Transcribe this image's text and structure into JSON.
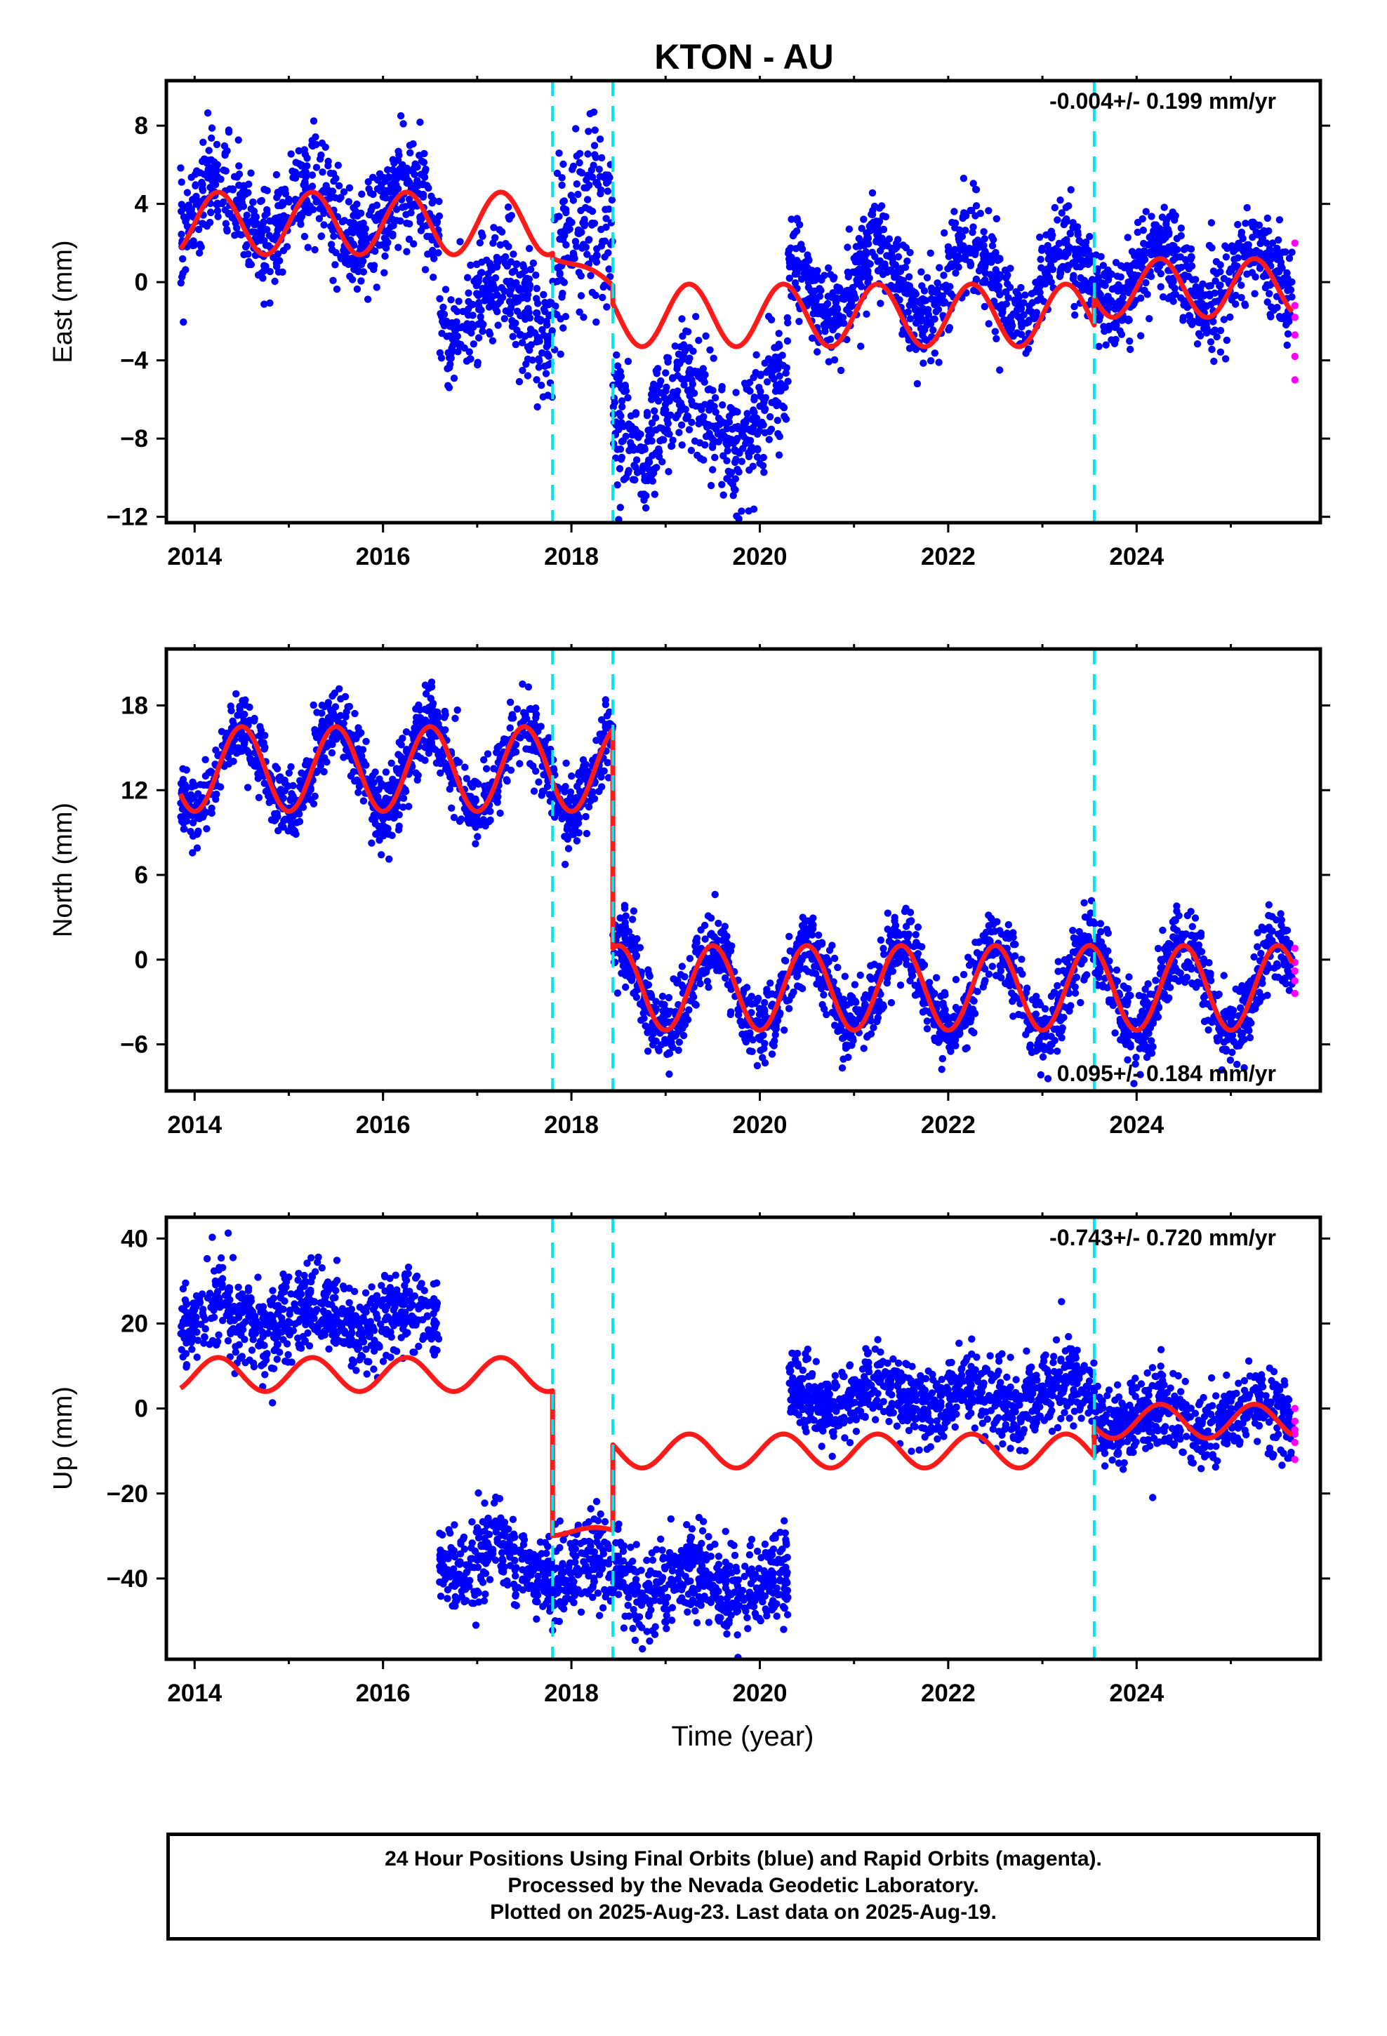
{
  "title": "KTON - AU",
  "xlabel": "Time (year)",
  "footer": {
    "line1": "24 Hour Positions Using Final Orbits (blue) and Rapid Orbits (magenta).",
    "line2": "Processed by the Nevada Geodetic Laboratory.",
    "line3": "Plotted on 2025-Aug-23. Last data on 2025-Aug-19."
  },
  "colors": {
    "final": "#0000ff",
    "rapid": "#ff00ff",
    "model": "#ff1a1a",
    "event": "#00e5ee"
  },
  "chart_data": [
    {
      "type": "scatter",
      "component": "east",
      "ylabel": "East (mm)",
      "rate": "-0.004+/- 0.199 mm/yr",
      "xlim": [
        2013.7,
        2025.95
      ],
      "ylim": [
        -12.3,
        10.3
      ],
      "xticks": [
        "2014",
        "2016",
        "2018",
        "2020",
        "2022",
        "2024"
      ],
      "yticks": [
        "8",
        "4",
        "0",
        "-4",
        "-8",
        "-12"
      ],
      "events": [
        2017.8,
        2018.44,
        2023.55
      ],
      "series": [
        {
          "segment": [
            2013.85,
            2016.6
          ],
          "offset": 3.5,
          "amp": 1.5,
          "spread": 1.3
        },
        {
          "segment": [
            2016.6,
            2017.8
          ],
          "offset": -1.3,
          "amp": 1.5,
          "spread": 1.5
        },
        {
          "segment": [
            2017.8,
            2018.44
          ],
          "offset": 2.0,
          "amp": 1.0,
          "spread": 2.5
        },
        {
          "segment": [
            2018.44,
            2020.3
          ],
          "offset": -6.8,
          "amp": 1.6,
          "spread": 1.6
        },
        {
          "segment": [
            2020.3,
            2023.55
          ],
          "offset": 0.0,
          "amp": 1.8,
          "spread": 1.2
        },
        {
          "segment": [
            2023.55,
            2025.65
          ],
          "offset": 0.2,
          "amp": 1.5,
          "spread": 1.2
        }
      ],
      "model": {
        "segments": [
          {
            "range": [
              2013.85,
              2017.8
            ],
            "offset": 3.0,
            "amp": 1.6
          },
          {
            "range": [
              2017.8,
              2018.44
            ],
            "offset": 1.5,
            "amp": 0.3,
            "trend": -2.8
          },
          {
            "range": [
              2018.44,
              2023.55
            ],
            "offset": -1.7,
            "amp": 1.6
          },
          {
            "range": [
              2023.55,
              2025.65
            ],
            "offset": -0.3,
            "amp": 1.5
          }
        ]
      },
      "rapid_points": [
        2.0,
        -1.2,
        -1.8,
        -2.7,
        -3.8,
        -5.0
      ]
    },
    {
      "type": "scatter",
      "component": "north",
      "ylabel": "North (mm)",
      "rate": "0.095+/- 0.184 mm/yr",
      "xlim": [
        2013.7,
        2025.95
      ],
      "ylim": [
        -9.3,
        22.0
      ],
      "xticks": [
        "2014",
        "2016",
        "2018",
        "2020",
        "2022",
        "2024"
      ],
      "yticks": [
        "18",
        "12",
        "6",
        "0",
        "-6"
      ],
      "events": [
        2017.8,
        2018.44,
        2023.55
      ],
      "series": [
        {
          "segment": [
            2013.85,
            2018.44
          ],
          "offset": 13.5,
          "amp": 3.0,
          "spread": 1.3
        },
        {
          "segment": [
            2018.44,
            2025.65
          ],
          "offset": -2.0,
          "amp": 3.0,
          "spread": 1.3
        }
      ],
      "model": {
        "segments": [
          {
            "range": [
              2013.85,
              2018.44
            ],
            "offset": 13.5,
            "amp": 3.0
          },
          {
            "range": [
              2018.44,
              2025.65
            ],
            "offset": -2.0,
            "amp": 3.0
          }
        ]
      },
      "rapid_points": [
        0.8,
        -0.2,
        -0.8,
        -1.5,
        -2.4
      ]
    },
    {
      "type": "scatter",
      "component": "up",
      "ylabel": "Up (mm)",
      "rate": "-0.743+/- 0.720 mm/yr",
      "xlim": [
        2013.7,
        2025.95
      ],
      "ylim": [
        -59.0,
        45.0
      ],
      "xticks": [
        "2014",
        "2016",
        "2018",
        "2020",
        "2022",
        "2024"
      ],
      "yticks": [
        "40",
        "20",
        "0",
        "-20",
        "-40"
      ],
      "events": [
        2017.8,
        2018.44,
        2023.55
      ],
      "series": [
        {
          "segment": [
            2013.85,
            2016.6
          ],
          "offset": 21.0,
          "amp": 3.0,
          "spread": 5.0
        },
        {
          "segment": [
            2016.6,
            2017.8
          ],
          "offset": -36.0,
          "amp": 3.0,
          "spread": 5.0
        },
        {
          "segment": [
            2017.8,
            2018.44
          ],
          "offset": -38.0,
          "amp": 3.0,
          "spread": 5.0
        },
        {
          "segment": [
            2018.44,
            2020.3
          ],
          "offset": -41.0,
          "amp": 3.0,
          "spread": 5.0
        },
        {
          "segment": [
            2020.3,
            2023.55
          ],
          "offset": 3.0,
          "amp": 3.0,
          "spread": 4.5
        },
        {
          "segment": [
            2023.55,
            2025.65
          ],
          "offset": -2.0,
          "amp": 3.0,
          "spread": 4.5
        }
      ],
      "model": {
        "segments": [
          {
            "range": [
              2013.85,
              2017.8
            ],
            "offset": 8.0,
            "amp": 4.0
          },
          {
            "range": [
              2017.8,
              2018.44
            ],
            "offset": -29.0,
            "amp": 1.0
          },
          {
            "range": [
              2018.44,
              2023.55
            ],
            "offset": -10.0,
            "amp": 4.0
          },
          {
            "range": [
              2023.55,
              2025.65
            ],
            "offset": -3.0,
            "amp": 4.0
          }
        ]
      },
      "rapid_points": [
        0.0,
        -3.0,
        -5.0,
        -6.0,
        -8.0,
        -12.0
      ]
    }
  ]
}
